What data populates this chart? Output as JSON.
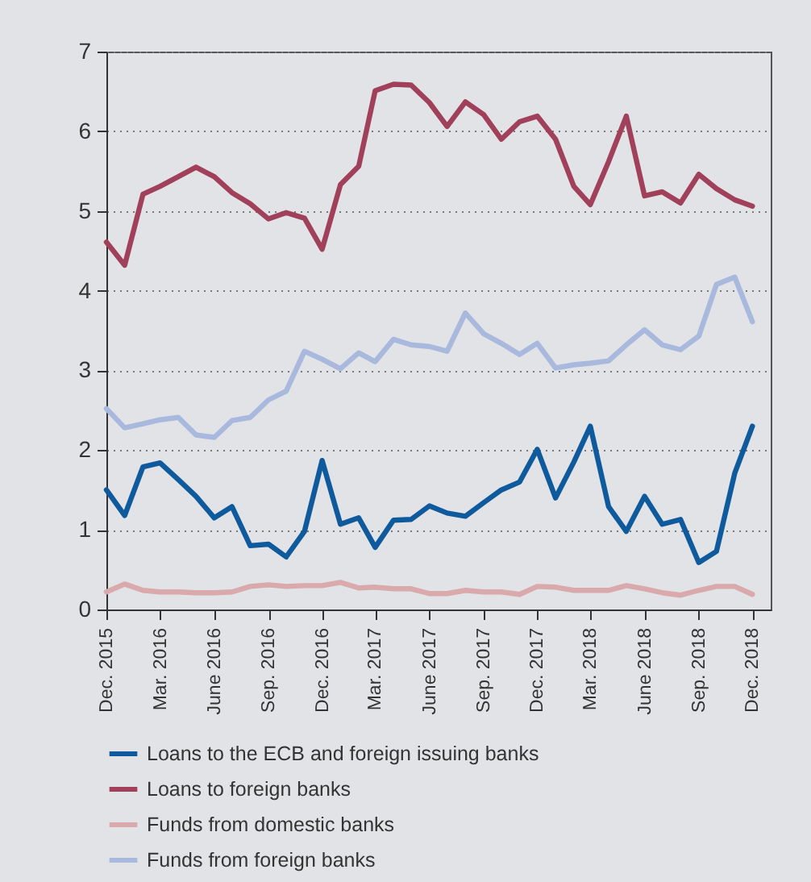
{
  "chart_data": {
    "type": "line",
    "x": [
      "2015-12",
      "2016-01",
      "2016-02",
      "2016-03",
      "2016-04",
      "2016-05",
      "2016-06",
      "2016-07",
      "2016-08",
      "2016-09",
      "2016-10",
      "2016-11",
      "2016-12",
      "2017-01",
      "2017-02",
      "2017-03",
      "2017-04",
      "2017-05",
      "2017-06",
      "2017-07",
      "2017-08",
      "2017-09",
      "2017-10",
      "2017-11",
      "2017-12",
      "2018-01",
      "2018-02",
      "2018-03",
      "2018-04",
      "2018-05",
      "2018-06",
      "2018-07",
      "2018-08",
      "2018-09",
      "2018-10",
      "2018-11",
      "2018-12"
    ],
    "series": [
      {
        "name": "Loans to the ECB and foreign issuing banks",
        "color": "#0f5a9c",
        "values": [
          1.5,
          1.18,
          1.79,
          1.84,
          1.63,
          1.42,
          1.15,
          1.29,
          0.8,
          0.82,
          0.66,
          0.98,
          1.87,
          1.07,
          1.15,
          0.78,
          1.12,
          1.13,
          1.3,
          1.21,
          1.17,
          1.34,
          1.5,
          1.6,
          2.01,
          1.4,
          1.85,
          2.3,
          1.29,
          0.98,
          1.42,
          1.07,
          1.13,
          0.59,
          0.73,
          1.71,
          2.3
        ]
      },
      {
        "name": "Loans to foreign banks",
        "color": "#a0405a",
        "values": [
          4.61,
          4.32,
          5.21,
          5.31,
          5.43,
          5.55,
          5.43,
          5.23,
          5.09,
          4.9,
          4.98,
          4.91,
          4.52,
          5.33,
          5.56,
          6.51,
          6.59,
          6.58,
          6.36,
          6.06,
          6.37,
          6.21,
          5.9,
          6.12,
          6.19,
          5.9,
          5.31,
          5.08,
          5.62,
          6.19,
          5.19,
          5.24,
          5.1,
          5.46,
          5.28,
          5.14,
          5.06
        ]
      },
      {
        "name": "Funds from domestic banks",
        "color": "#d9a9ab",
        "values": [
          0.22,
          0.32,
          0.24,
          0.22,
          0.22,
          0.21,
          0.21,
          0.22,
          0.29,
          0.31,
          0.29,
          0.3,
          0.3,
          0.34,
          0.27,
          0.28,
          0.26,
          0.26,
          0.2,
          0.2,
          0.24,
          0.22,
          0.22,
          0.19,
          0.29,
          0.28,
          0.24,
          0.24,
          0.24,
          0.3,
          0.26,
          0.21,
          0.18,
          0.24,
          0.29,
          0.29,
          0.19
        ]
      },
      {
        "name": "Funds from foreign banks",
        "color": "#a9b8dd",
        "values": [
          2.52,
          2.28,
          2.33,
          2.38,
          2.41,
          2.19,
          2.16,
          2.37,
          2.41,
          2.63,
          2.74,
          3.24,
          3.14,
          3.02,
          3.22,
          3.11,
          3.39,
          3.32,
          3.3,
          3.24,
          3.72,
          3.46,
          3.34,
          3.2,
          3.34,
          3.03,
          3.07,
          3.09,
          3.12,
          3.32,
          3.51,
          3.32,
          3.26,
          3.43,
          4.08,
          4.17,
          3.61
        ]
      }
    ],
    "xlim": [
      "2015-12",
      "2019-01"
    ],
    "xticks": [
      {
        "value": "2015-12",
        "label": "Dec. 2015"
      },
      {
        "value": "2016-03",
        "label": "Mar. 2016"
      },
      {
        "value": "2016-06",
        "label": "June 2016"
      },
      {
        "value": "2016-09",
        "label": "Sep. 2016"
      },
      {
        "value": "2016-12",
        "label": "Dec. 2016"
      },
      {
        "value": "2017-03",
        "label": "Mar. 2017"
      },
      {
        "value": "2017-06",
        "label": "June 2017"
      },
      {
        "value": "2017-09",
        "label": "Sep. 2017"
      },
      {
        "value": "2017-12",
        "label": "Dec. 2017"
      },
      {
        "value": "2018-03",
        "label": "Mar. 2018"
      },
      {
        "value": "2018-06",
        "label": "June 2018"
      },
      {
        "value": "2018-09",
        "label": "Sep. 2018"
      },
      {
        "value": "2018-12",
        "label": "Dec. 2018"
      }
    ],
    "ylim": [
      0,
      7
    ],
    "yticks": [
      0,
      1,
      2,
      3,
      4,
      5,
      6,
      7
    ],
    "grid": "y",
    "legend": "bottom",
    "line_style": "solid",
    "marker": "none"
  }
}
